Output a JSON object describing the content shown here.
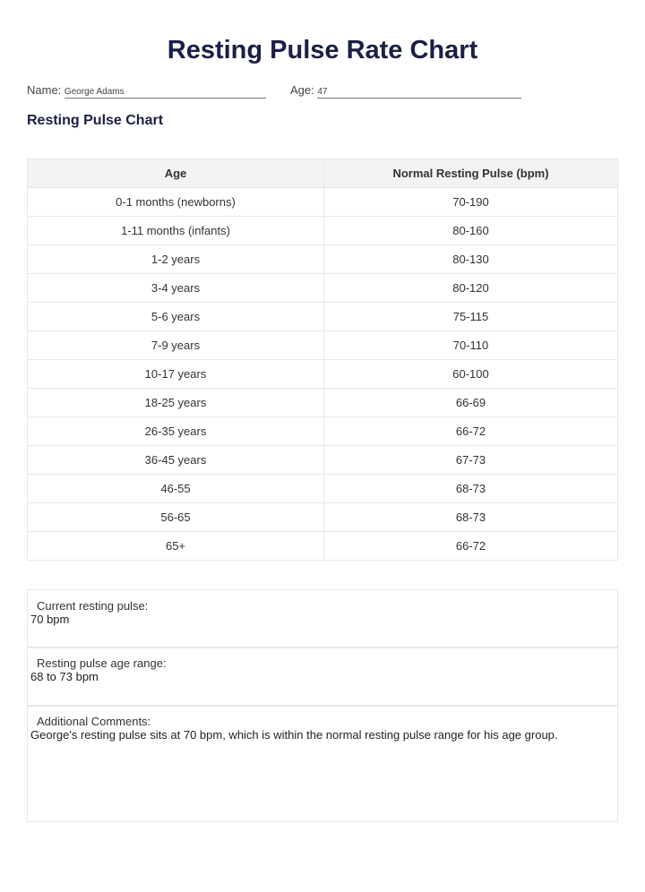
{
  "title": "Resting Pulse Rate Chart",
  "patient": {
    "name_label": "Name:",
    "name": "George Adams",
    "age_label": "Age:",
    "age": "47"
  },
  "section_title": "Resting Pulse Chart",
  "table": {
    "headers": [
      "Age",
      "Normal Resting Pulse (bpm)"
    ],
    "rows": [
      [
        "0-1 months (newborns)",
        "70-190"
      ],
      [
        "1-11 months (infants)",
        "80-160"
      ],
      [
        "1-2 years",
        "80-130"
      ],
      [
        "3-4 years",
        "80-120"
      ],
      [
        "5-6 years",
        "75-115"
      ],
      [
        "7-9 years",
        "70-110"
      ],
      [
        "10-17 years",
        "60-100"
      ],
      [
        "18-25 years",
        "66-69"
      ],
      [
        "26-35 years",
        "66-72"
      ],
      [
        "36-45 years",
        "67-73"
      ],
      [
        "46-55",
        "68-73"
      ],
      [
        "56-65",
        "68-73"
      ],
      [
        "65+",
        "66-72"
      ]
    ]
  },
  "fields": {
    "current_label": "Current resting pulse:",
    "current_value": "70 bpm",
    "range_label": "Resting pulse age range:",
    "range_value": "68 to 73 bpm",
    "comments_label": "Additional Comments:",
    "comments_value": "George's resting pulse sits at 70 bpm, which is within the normal resting pulse range for his age group."
  }
}
